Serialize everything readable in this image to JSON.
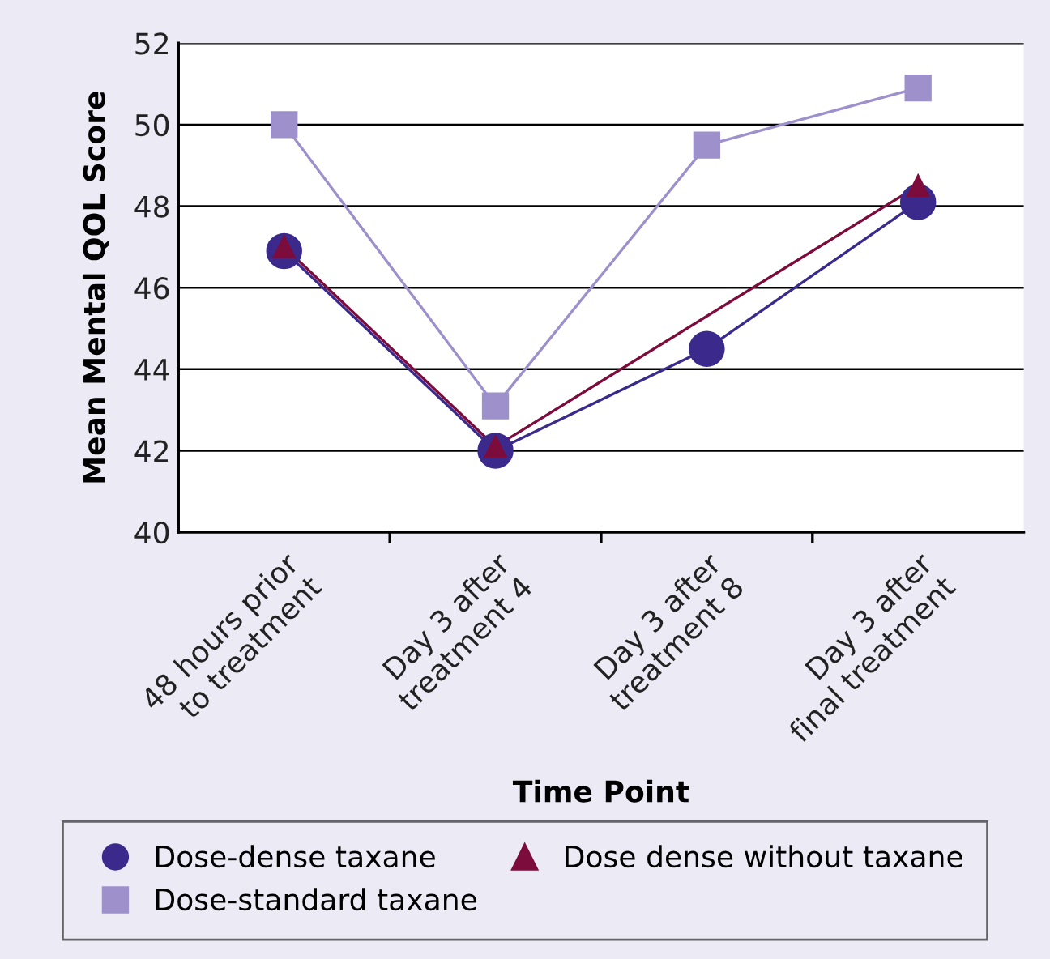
{
  "chart_data": {
    "type": "line",
    "xlabel": "Time Point",
    "ylabel": "Mean Mental QOL Score",
    "categories": [
      "48 hours prior\nto treatment",
      "Day 3 after\ntreatment 4",
      "Day 3 after\ntreatment 8",
      "Day 3 after\nfinal treatment"
    ],
    "series": [
      {
        "name": "Dose-dense taxane",
        "color": "#3b2a8c",
        "marker": "circle",
        "values": [
          46.9,
          42.0,
          44.5,
          48.1
        ]
      },
      {
        "name": "Dose-standard taxane",
        "color": "#9d90cb",
        "marker": "square",
        "values": [
          50.0,
          43.1,
          49.5,
          50.9
        ]
      },
      {
        "name": "Dose dense without taxane",
        "color": "#7b0c3c",
        "marker": "triangle",
        "values": [
          47.0,
          42.1,
          null,
          48.5
        ]
      }
    ],
    "ylim": [
      40,
      52
    ],
    "yticks": [
      40,
      42,
      44,
      46,
      48,
      50,
      52
    ],
    "grid": "y",
    "legend": "bottom"
  }
}
